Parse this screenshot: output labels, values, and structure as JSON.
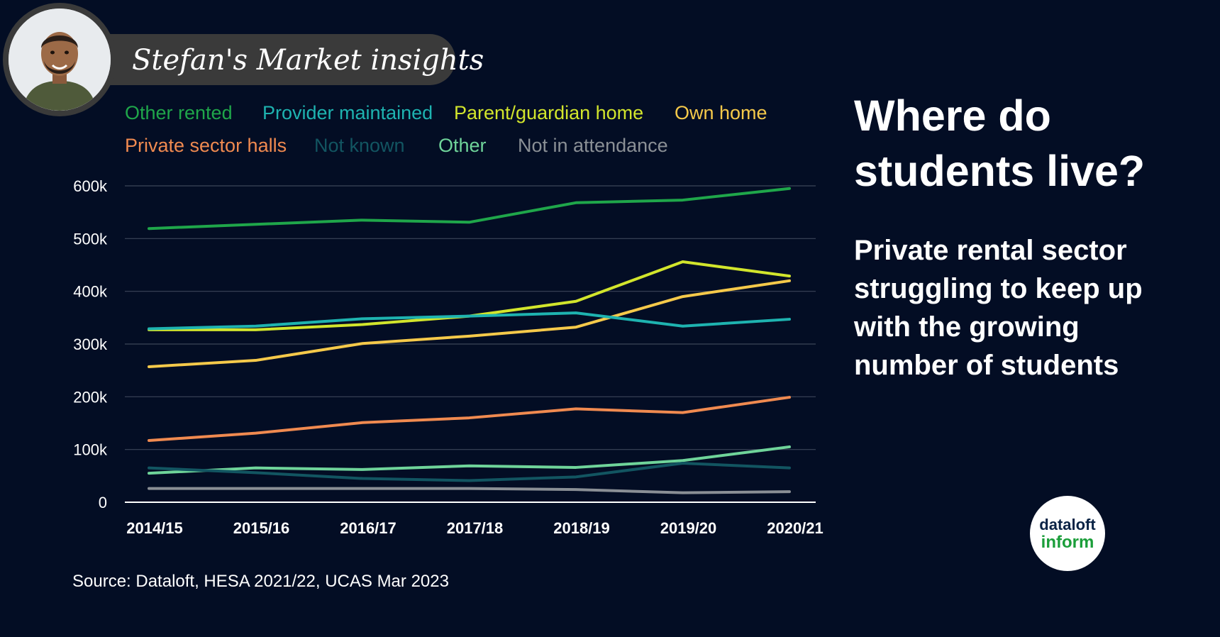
{
  "header": {
    "banner_title": "Stefan's Market insights"
  },
  "headline": {
    "title": "Where do students live?",
    "subtitle": "Private rental sector struggling to keep up with the growing number of students"
  },
  "source": "Source: Dataloft, HESA 2021/22, UCAS Mar 2023",
  "logo": {
    "line1": "dataloft",
    "line2": "inform"
  },
  "chart_data": {
    "type": "line",
    "title": "",
    "xlabel": "",
    "ylabel": "",
    "categories": [
      "2014/15",
      "2015/16",
      "2016/17",
      "2017/18",
      "2018/19",
      "2019/20",
      "2020/21"
    ],
    "ylim": [
      0,
      600000
    ],
    "yticks": [
      0,
      100000,
      200000,
      300000,
      400000,
      500000,
      600000
    ],
    "ytick_labels": [
      "0",
      "100k",
      "200k",
      "300k",
      "400k",
      "500k",
      "600k"
    ],
    "grid": true,
    "legend_position": "top",
    "series": [
      {
        "name": "Other rented",
        "color": "#1fa64a",
        "x": [
          0,
          1,
          2,
          3,
          4,
          5,
          6
        ],
        "values": [
          519000,
          527000,
          535000,
          531000,
          568000,
          573000,
          595000
        ]
      },
      {
        "name": "Provider maintained",
        "color": "#1eb3b0",
        "x": [
          0,
          1,
          2,
          3,
          4,
          5,
          6
        ],
        "values": [
          329000,
          334000,
          348000,
          353000,
          359000,
          334000,
          347000
        ]
      },
      {
        "name": "Parent/guardian home",
        "color": "#d2e52c",
        "x": [
          0,
          1,
          2,
          3,
          4,
          5,
          6
        ],
        "values": [
          327000,
          327000,
          337000,
          353000,
          381000,
          456000,
          429000
        ]
      },
      {
        "name": "Own home",
        "color": "#f5c94a",
        "x": [
          0,
          1,
          2,
          3,
          4,
          5,
          6
        ],
        "values": [
          257000,
          269000,
          301000,
          315000,
          332000,
          390000,
          420000
        ]
      },
      {
        "name": "Private sector halls",
        "color": "#f08a50",
        "x": [
          0,
          1,
          2,
          3,
          4,
          5,
          6
        ],
        "values": [
          117000,
          131000,
          151000,
          160000,
          177000,
          170000,
          199000
        ]
      },
      {
        "name": "Not known",
        "color": "#125561",
        "x": [
          0,
          1,
          2,
          3,
          4,
          5,
          6
        ],
        "values": [
          65000,
          56000,
          45000,
          41000,
          48000,
          74000,
          65000
        ]
      },
      {
        "name": "Other",
        "color": "#6fd49a",
        "x": [
          0,
          1,
          2,
          3,
          4,
          5,
          6
        ],
        "values": [
          55000,
          65000,
          62000,
          69000,
          66000,
          79000,
          105000
        ]
      },
      {
        "name": "Not in attendance",
        "color": "#8a8f95",
        "x": [
          0,
          1,
          2,
          3,
          4,
          5,
          6
        ],
        "values": [
          26000,
          26000,
          26000,
          26000,
          24000,
          18000,
          20000
        ]
      }
    ]
  }
}
